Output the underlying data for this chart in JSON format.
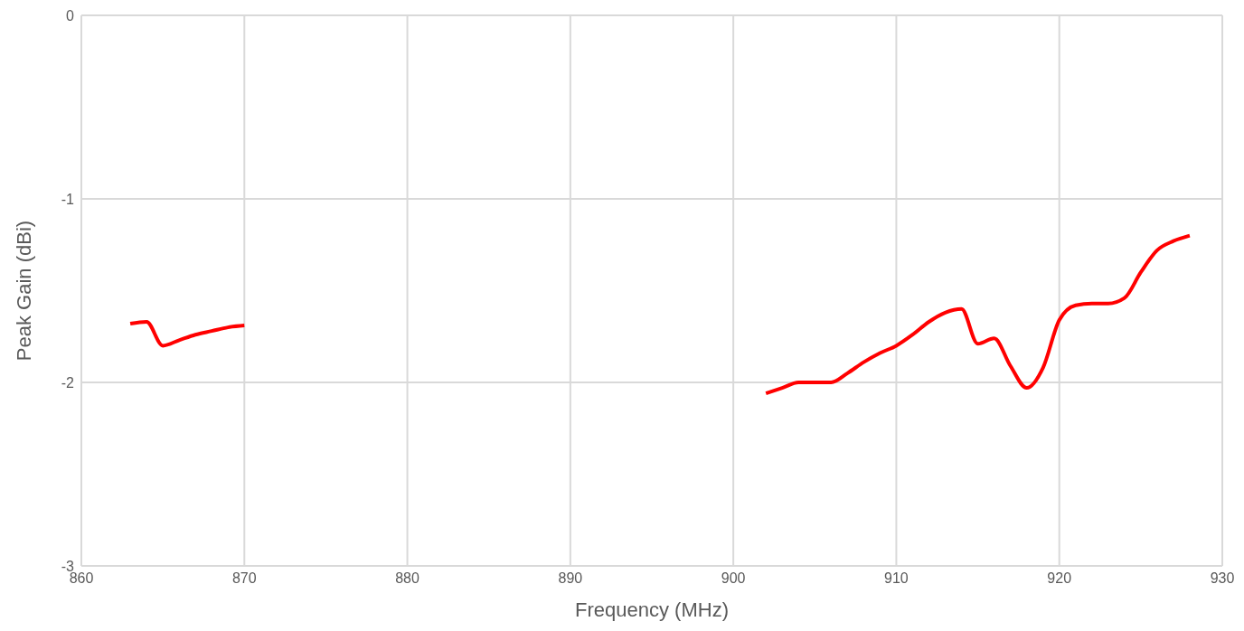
{
  "chart_data": {
    "type": "line",
    "xlabel": "Frequency (MHz)",
    "ylabel": "Peak Gain (dBi)",
    "x": [
      863,
      864,
      865,
      866,
      867,
      868,
      869,
      870,
      886,
      902,
      903,
      904,
      905,
      906,
      907,
      908,
      909,
      910,
      911,
      912,
      913,
      914,
      915,
      916,
      917,
      918,
      919,
      920,
      921,
      922,
      923,
      924,
      925,
      926,
      927,
      928
    ],
    "series": [
      {
        "color": "#ff0000",
        "values": [
          -1.68,
          -1.67,
          -1.8,
          -1.77,
          -1.74,
          -1.72,
          -1.7,
          -1.69,
          null,
          -2.06,
          -2.03,
          -2.0,
          -2.0,
          -2.0,
          -1.95,
          -1.89,
          -1.84,
          -1.8,
          -1.74,
          -1.67,
          -1.62,
          -1.6,
          -1.79,
          -1.76,
          -1.91,
          -2.03,
          -1.92,
          -1.66,
          -1.58,
          -1.57,
          -1.57,
          -1.54,
          -1.4,
          -1.28,
          -1.23,
          -1.2
        ]
      }
    ],
    "xlim": [
      860,
      930
    ],
    "xticks": [
      860,
      870,
      880,
      890,
      900,
      910,
      920,
      930
    ],
    "ylim": [
      -3,
      0
    ],
    "yticks": [
      -3,
      -2,
      -1,
      0
    ],
    "grid": true,
    "marker": "none",
    "line_style": "solid",
    "legend": false
  }
}
